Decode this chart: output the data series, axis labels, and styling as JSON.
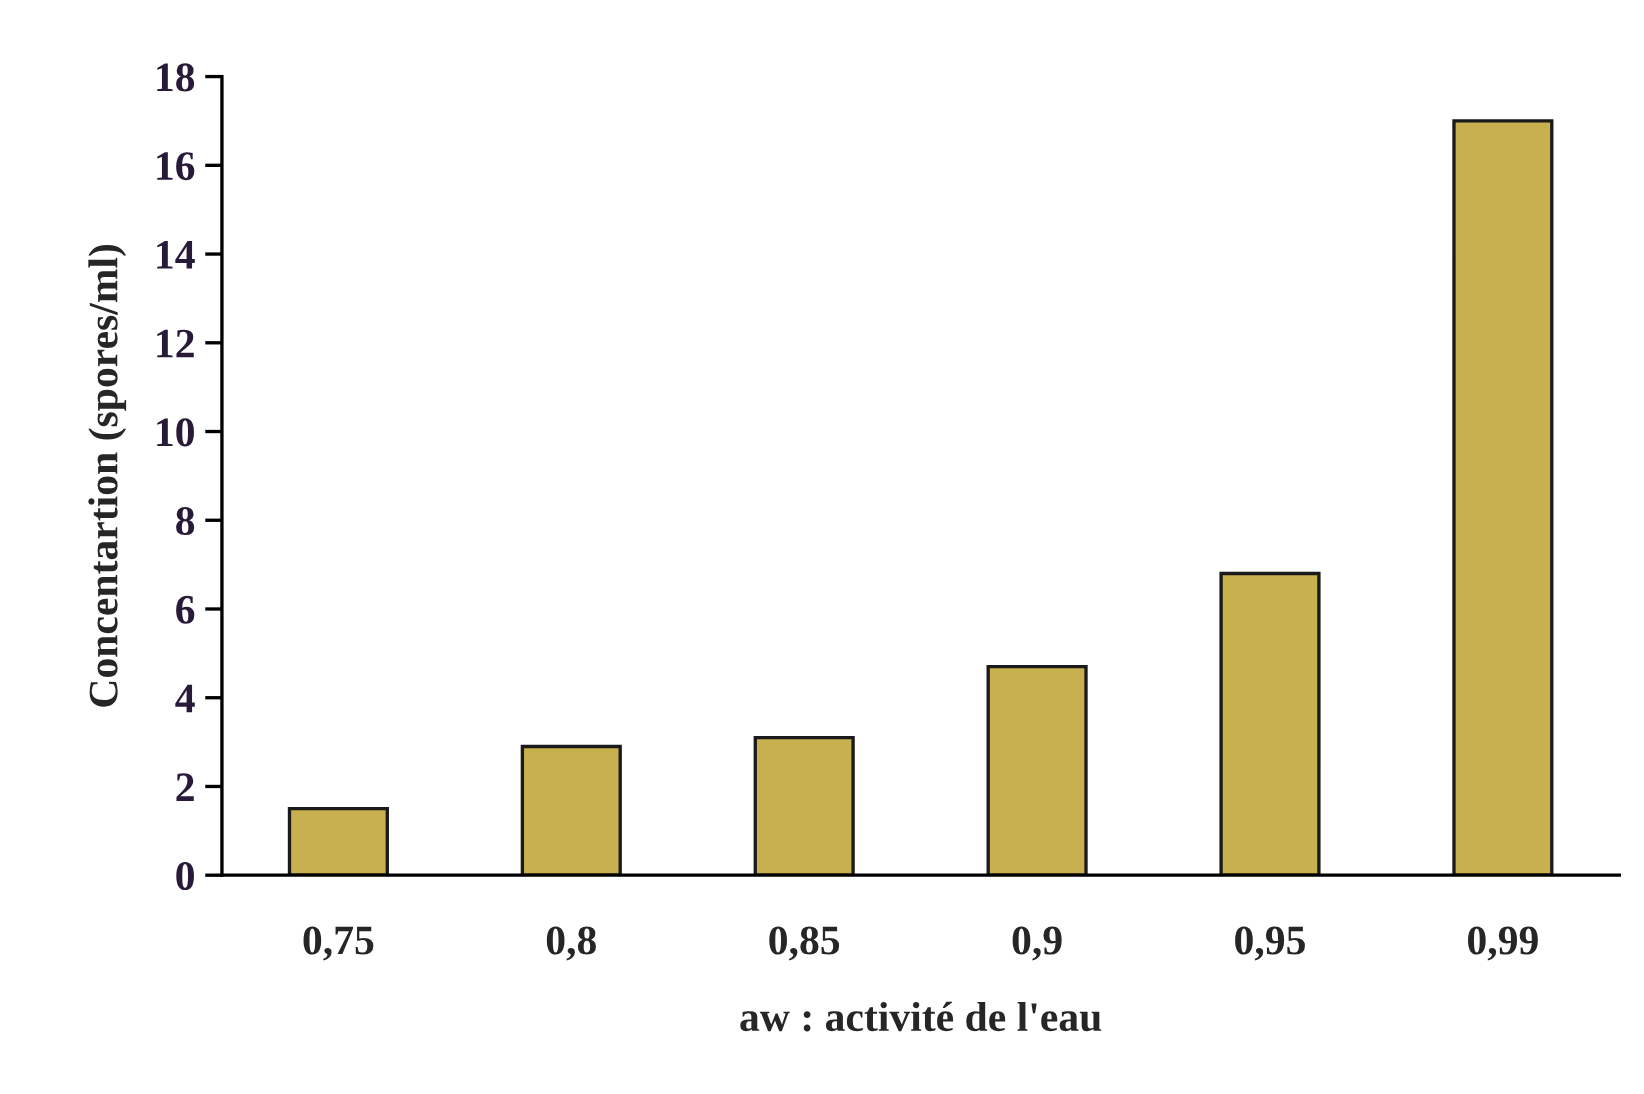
{
  "chart_data": {
    "type": "bar",
    "xlabel": "aw : activité de l'eau",
    "ylabel": "Concentartion (spores/ml)",
    "categories": [
      "0,75",
      "0,8",
      "0,85",
      "0,9",
      "0,95",
      "0,99"
    ],
    "values": [
      1.5,
      2.9,
      3.1,
      4.7,
      6.8,
      17.0
    ],
    "color": "#c9b04f",
    "ylim": [
      0,
      18
    ],
    "yticks": [
      0,
      2,
      4,
      6,
      8,
      10,
      12,
      14,
      16,
      18
    ],
    "grid": false,
    "legend": false
  }
}
